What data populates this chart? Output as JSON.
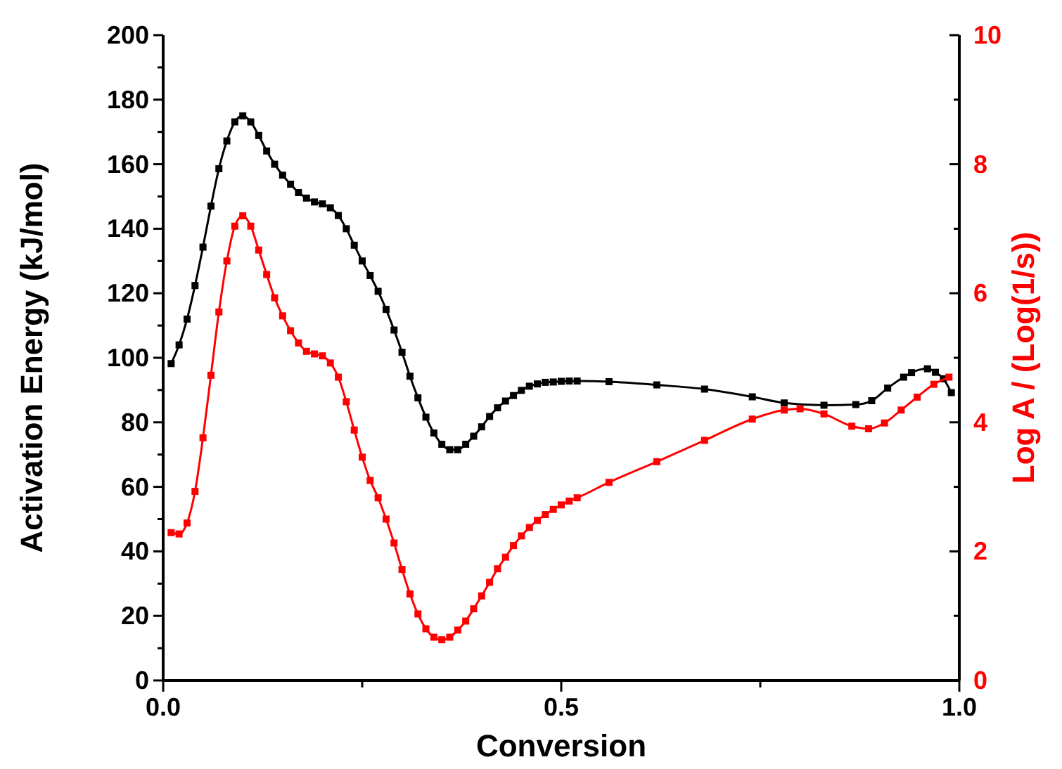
{
  "chart_data": {
    "type": "line",
    "xlabel": "Conversion",
    "ylabel": "Activation Energy (kJ/mol)",
    "y2label": "Log A / (Log(1/s))",
    "xlim": [
      0,
      1
    ],
    "xticks": [
      {
        "value": 0,
        "label": "0.0"
      },
      {
        "value": 0.25,
        "label": null
      },
      0.5,
      {
        "value": 0.75,
        "label": null
      },
      {
        "value": 1,
        "label": "1.0"
      }
    ],
    "ylim": [
      0,
      200
    ],
    "yticks": [
      0,
      {
        "value": 10,
        "label": null
      },
      20,
      {
        "value": 30,
        "label": null
      },
      40,
      {
        "value": 50,
        "label": null
      },
      60,
      {
        "value": 70,
        "label": null
      },
      80,
      {
        "value": 90,
        "label": null
      },
      100,
      {
        "value": 110,
        "label": null
      },
      120,
      {
        "value": 130,
        "label": null
      },
      140,
      {
        "value": 150,
        "label": null
      },
      160,
      {
        "value": 170,
        "label": null
      },
      180,
      {
        "value": 190,
        "label": null
      },
      200
    ],
    "y2lim": [
      0,
      10
    ],
    "y2ticks": [
      0,
      {
        "value": 1,
        "label": null
      },
      2,
      {
        "value": 3,
        "label": null
      },
      4,
      {
        "value": 5,
        "label": null
      },
      6,
      {
        "value": 7,
        "label": null
      },
      8,
      {
        "value": 9,
        "label": null
      },
      10
    ],
    "marker": "square",
    "line_style": "solid",
    "grid": false,
    "series": [
      {
        "color": "#000000",
        "x": [
          0.01,
          0.02,
          0.03,
          0.04,
          0.05,
          0.06,
          0.07,
          0.08,
          0.09,
          0.1,
          0.11,
          0.12,
          0.13,
          0.14,
          0.15,
          0.16,
          0.17,
          0.18,
          0.19,
          0.2,
          0.21,
          0.22,
          0.23,
          0.24,
          0.25,
          0.26,
          0.27,
          0.28,
          0.29,
          0.3,
          0.31,
          0.32,
          0.33,
          0.34,
          0.35,
          0.36,
          0.37,
          0.38,
          0.39,
          0.4,
          0.41,
          0.42,
          0.43,
          0.44,
          0.45,
          0.46,
          0.47,
          0.48,
          0.49,
          0.5,
          0.51,
          0.52,
          0.56,
          0.62,
          0.68,
          0.74,
          0.78,
          0.83,
          0.87,
          0.89,
          0.91,
          0.93,
          0.94,
          0.96,
          0.97,
          0.98,
          0.99
        ],
        "values": [
          98.2,
          104,
          112,
          122.4,
          134.3,
          147,
          158.6,
          167.2,
          173.1,
          175,
          173.1,
          168.9,
          164.1,
          160,
          156.6,
          153.8,
          151.2,
          149.5,
          148.3,
          147.7,
          146.5,
          144.1,
          140,
          134.9,
          130,
          125.5,
          120.6,
          115,
          108.6,
          101.7,
          94.3,
          87.6,
          81.6,
          76.7,
          73.2,
          71.5,
          71.5,
          73.2,
          75.7,
          78.6,
          81.8,
          84.5,
          86.6,
          88.3,
          89.9,
          91.2,
          91.9,
          92.4,
          92.5,
          92.7,
          92.8,
          92.8,
          92.6,
          91.6,
          90.3,
          87.9,
          86,
          85.3,
          85.5,
          86.7,
          90.6,
          94,
          95.4,
          96.6,
          95.5,
          93.5,
          89.2
        ]
      },
      {
        "color": "#ff0000",
        "axis": "y2",
        "x": [
          0.01,
          0.02,
          0.03,
          0.04,
          0.05,
          0.06,
          0.07,
          0.08,
          0.09,
          0.1,
          0.11,
          0.12,
          0.13,
          0.14,
          0.15,
          0.16,
          0.17,
          0.18,
          0.19,
          0.2,
          0.21,
          0.22,
          0.23,
          0.24,
          0.25,
          0.26,
          0.27,
          0.28,
          0.29,
          0.3,
          0.31,
          0.32,
          0.33,
          0.34,
          0.35,
          0.36,
          0.37,
          0.38,
          0.39,
          0.4,
          0.41,
          0.42,
          0.43,
          0.44,
          0.45,
          0.46,
          0.47,
          0.48,
          0.49,
          0.5,
          0.51,
          0.52,
          0.56,
          0.62,
          0.68,
          0.74,
          0.78,
          0.8,
          0.83,
          0.865,
          0.886,
          0.906,
          0.927,
          0.947,
          0.968,
          0.987
        ],
        "values": [
          2.29,
          2.27,
          2.44,
          2.93,
          3.76,
          4.73,
          5.71,
          6.5,
          7.04,
          7.2,
          7.04,
          6.67,
          6.29,
          5.93,
          5.65,
          5.42,
          5.23,
          5.1,
          5.06,
          5.03,
          4.92,
          4.7,
          4.32,
          3.88,
          3.46,
          3.1,
          2.83,
          2.5,
          2.13,
          1.72,
          1.34,
          1.03,
          0.8,
          0.67,
          0.63,
          0.67,
          0.78,
          0.92,
          1.11,
          1.31,
          1.52,
          1.73,
          1.91,
          2.09,
          2.24,
          2.37,
          2.48,
          2.57,
          2.65,
          2.72,
          2.78,
          2.83,
          3.07,
          3.39,
          3.72,
          4.05,
          4.19,
          4.21,
          4.13,
          3.94,
          3.9,
          3.99,
          4.19,
          4.39,
          4.59,
          4.7
        ]
      }
    ]
  }
}
